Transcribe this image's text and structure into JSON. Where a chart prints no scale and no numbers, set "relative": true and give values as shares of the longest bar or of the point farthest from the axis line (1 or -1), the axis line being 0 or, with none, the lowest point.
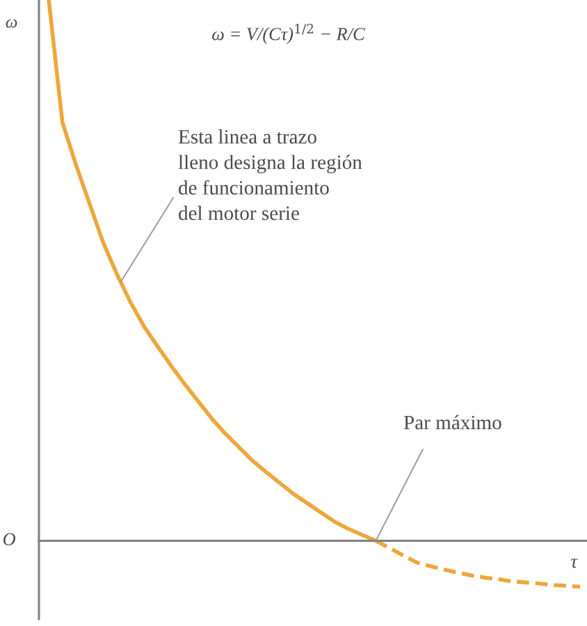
{
  "chart_data": {
    "type": "line",
    "relative": true,
    "xlabel": "τ",
    "ylabel": "ω",
    "categories": [
      null,
      null,
      null,
      null,
      null,
      null,
      null,
      null,
      null,
      null,
      null,
      null,
      null,
      null,
      null,
      null,
      null,
      null,
      null,
      null,
      null,
      null,
      null,
      null,
      null,
      null,
      null,
      null,
      null,
      null,
      null,
      null,
      null,
      null,
      null,
      null,
      null,
      null,
      null,
      null
    ],
    "series": [
      {
        "color": "#eda73c",
        "line_style": "solid",
        "values": [
          1.0,
          0.774,
          0.695,
          0.623,
          0.551,
          0.493,
          0.441,
          0.396,
          0.359,
          0.323,
          0.289,
          0.257,
          0.225,
          0.197,
          0.172,
          0.147,
          0.126,
          0.106,
          0.086,
          0.069,
          0.052,
          0.035,
          0.022,
          0.011,
          0.0,
          null,
          null,
          null,
          null,
          null,
          null,
          null,
          null,
          null,
          null,
          null,
          null,
          null,
          null,
          null
        ]
      },
      {
        "color": "#eda73c",
        "line_style": "dashed",
        "values": [
          null,
          null,
          null,
          null,
          null,
          null,
          null,
          null,
          null,
          null,
          null,
          null,
          null,
          null,
          null,
          null,
          null,
          null,
          null,
          null,
          null,
          null,
          null,
          null,
          0.0,
          -0.013,
          -0.027,
          -0.04,
          -0.047,
          -0.053,
          -0.059,
          -0.064,
          -0.068,
          -0.071,
          -0.075,
          -0.077,
          -0.079,
          -0.082,
          -0.083,
          -0.085
        ]
      }
    ],
    "annotations": [
      "ω = V/(Cτ)$^{1/2}$ − R/C",
      "Esta linea a trazo\nlleno designa la región\nde funcionamiento\ndel motor serie",
      "Par máximo",
      "O"
    ]
  }
}
